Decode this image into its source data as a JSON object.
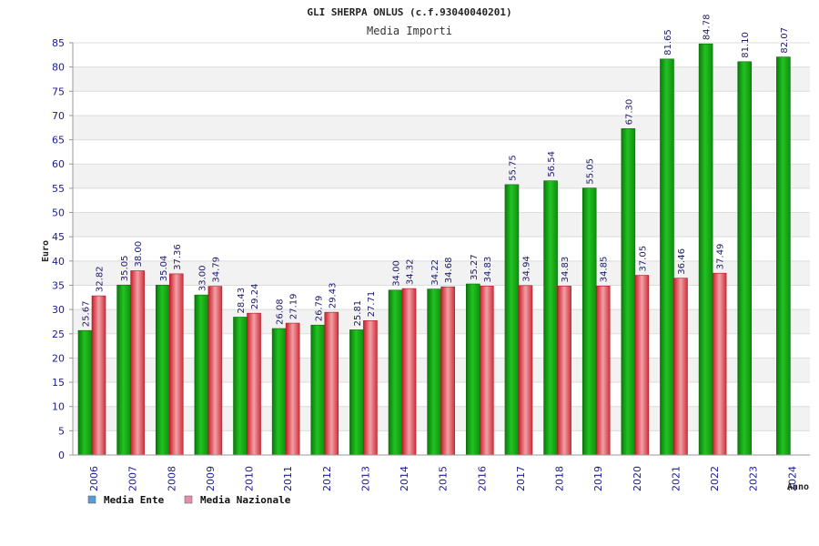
{
  "chart_data": {
    "type": "bar",
    "title": "GLI SHERPA ONLUS (c.f.93040040201)",
    "subtitle": "Media Importi",
    "ylabel": "Euro",
    "xlabel": "Anno",
    "ylim": [
      0,
      85
    ],
    "yticks": [
      0,
      5,
      10,
      15,
      20,
      25,
      30,
      35,
      40,
      45,
      50,
      55,
      60,
      65,
      70,
      75,
      80,
      85
    ],
    "grid": true,
    "legend_position": "bottom-left",
    "categories": [
      "2006",
      "2007",
      "2008",
      "2009",
      "2010",
      "2011",
      "2012",
      "2013",
      "2014",
      "2015",
      "2016",
      "2017",
      "2018",
      "2019",
      "2020",
      "2021",
      "2022",
      "2023",
      "2024"
    ],
    "series": [
      {
        "name": "Media Ente",
        "color": "#1fbf1f",
        "legend_color": "#5b9bd5",
        "values": [
          25.67,
          35.05,
          35.04,
          33.0,
          28.43,
          26.08,
          26.79,
          25.81,
          34.0,
          34.22,
          35.27,
          55.75,
          56.54,
          55.05,
          67.3,
          81.65,
          84.78,
          81.1,
          82.07
        ],
        "labels": [
          "25.67",
          "35.05",
          "35.04",
          "33.00",
          "28.43",
          "26.08",
          "26.79",
          "25.81",
          "34.00",
          "34.22",
          "35.27",
          "55.75",
          "56.54",
          "55.05",
          "67.30",
          "81.65",
          "84.78",
          "81.10",
          "82.07"
        ]
      },
      {
        "name": "Media Nazionale",
        "color": "#e0303a",
        "legend_color": "#e58fa8",
        "values": [
          32.82,
          38.0,
          37.36,
          34.79,
          29.24,
          27.19,
          29.43,
          27.71,
          34.32,
          34.68,
          34.83,
          34.94,
          34.83,
          34.85,
          37.05,
          36.46,
          37.49,
          null,
          null
        ],
        "labels": [
          "32.82",
          "38.00",
          "37.36",
          "34.79",
          "29.24",
          "27.19",
          "29.43",
          "27.71",
          "34.32",
          "34.68",
          "34.83",
          "34.94",
          "34.83",
          "34.85",
          "37.05",
          "36.46",
          "37.49",
          null,
          null
        ]
      }
    ]
  }
}
